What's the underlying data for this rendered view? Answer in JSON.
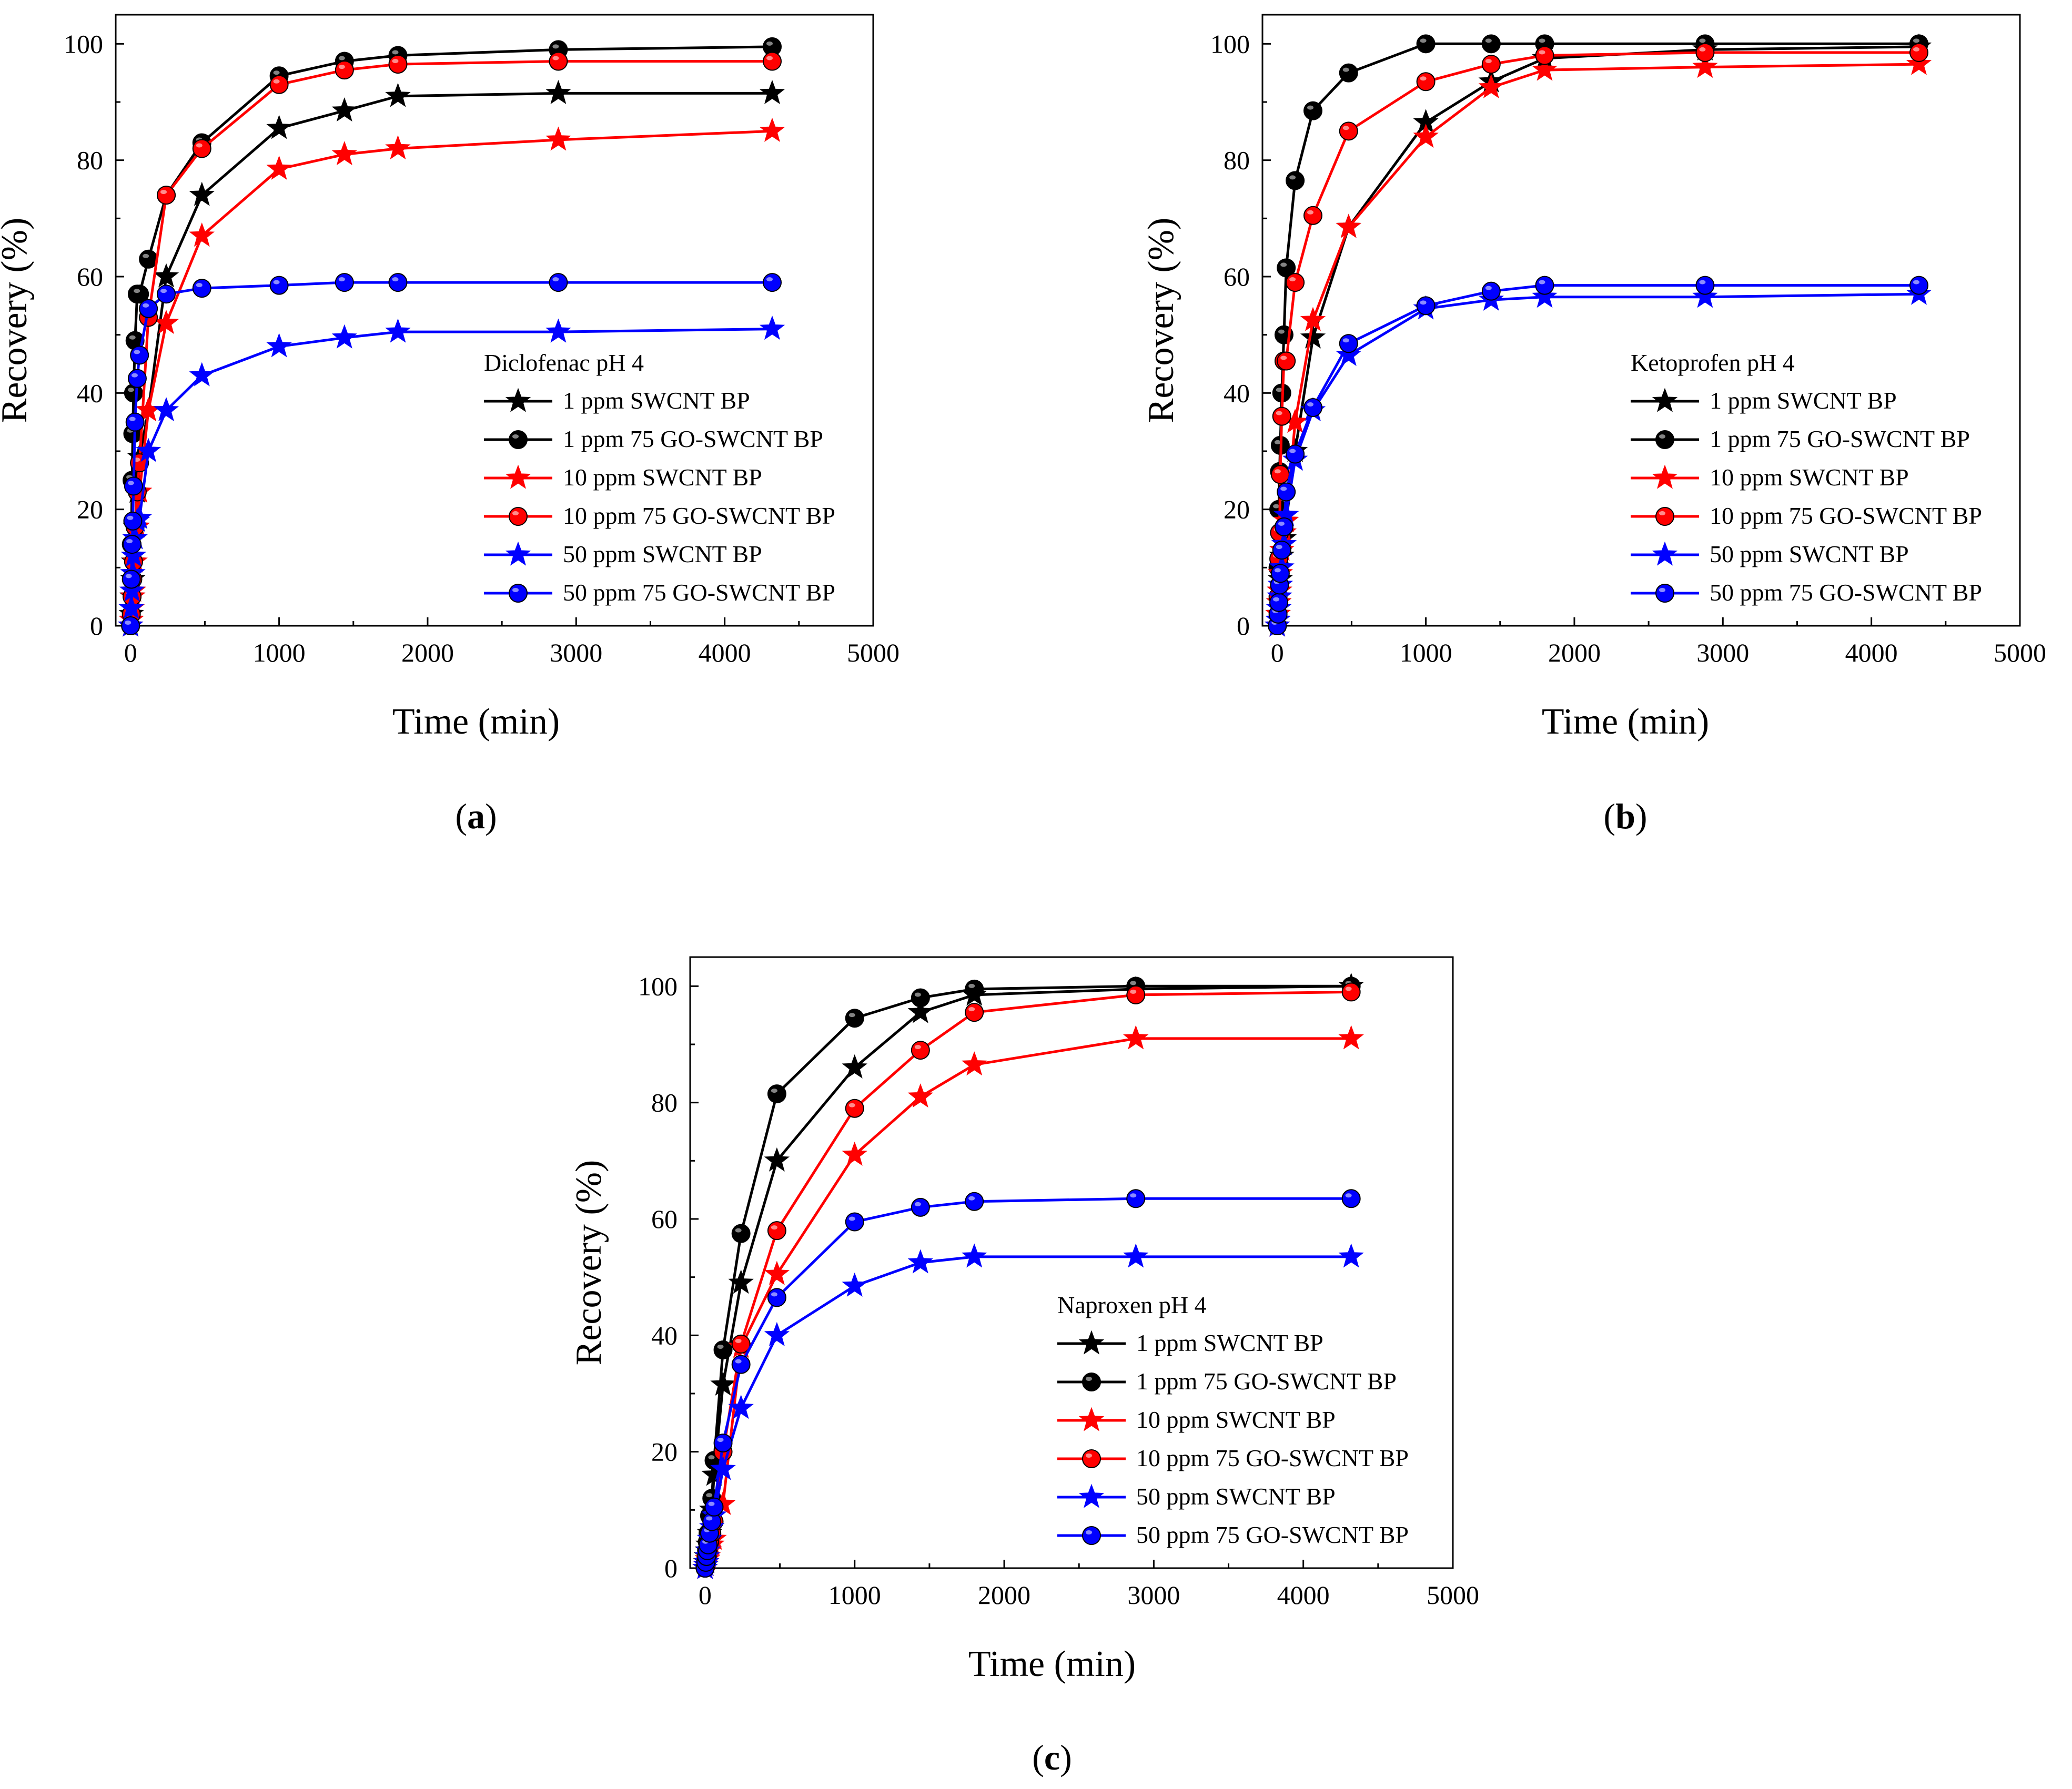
{
  "panel_labels": [
    "a",
    "b",
    "c"
  ],
  "legend_entries": [
    "1 ppm SWCNT BP",
    "1 ppm 75 GO-SWCNT BP",
    "10 ppm SWCNT BP",
    "10 ppm 75 GO-SWCNT BP",
    "50 ppm SWCNT BP",
    "50 ppm 75 GO-SWCNT BP"
  ],
  "colors": {
    "black": "#000000",
    "red": "#ff0000",
    "blue": "#0000ff"
  },
  "chart_data": [
    {
      "type": "line",
      "panel": "a",
      "title": "Diclofenac pH 4",
      "xlabel": "Time (min)",
      "ylabel": "Recovery (%)",
      "xlim": [
        -100,
        5000
      ],
      "ylim": [
        0,
        105
      ],
      "xticks": [
        0,
        1000,
        2000,
        3000,
        4000,
        5000
      ],
      "yticks": [
        0,
        20,
        40,
        60,
        80,
        100
      ],
      "legend_position": "center-right",
      "x": [
        0,
        5,
        10,
        15,
        20,
        30,
        45,
        60,
        120,
        240,
        480,
        1000,
        1440,
        1800,
        2880,
        4320
      ],
      "series": [
        {
          "name": "1 ppm SWCNT BP",
          "color": "#000000",
          "marker": "star",
          "values": [
            0,
            2,
            5,
            8,
            11,
            17,
            23,
            29,
            37,
            60,
            74,
            85.5,
            88.5,
            91,
            91.5,
            91.5
          ]
        },
        {
          "name": "1 ppm 75 GO-SWCNT BP",
          "color": "#000000",
          "marker": "circle",
          "values": [
            0,
            14,
            25,
            33,
            40,
            49,
            57,
            57,
            63,
            74,
            83,
            94.5,
            97,
            98,
            99,
            99.5
          ]
        },
        {
          "name": "10 ppm SWCNT BP",
          "color": "#ff0000",
          "marker": "star",
          "values": [
            0,
            1,
            3,
            5,
            6,
            11,
            17,
            23,
            37,
            52,
            67,
            78.5,
            81,
            82,
            83.5,
            85
          ]
        },
        {
          "name": "10 ppm 75 GO-SWCNT BP",
          "color": "#ff0000",
          "marker": "circle",
          "values": [
            0,
            2,
            5,
            8,
            11,
            17,
            23,
            28,
            53,
            74,
            82,
            93,
            95.5,
            96.5,
            97,
            97
          ]
        },
        {
          "name": "50 ppm SWCNT BP",
          "color": "#0000ff",
          "marker": "star",
          "values": [
            0,
            3,
            6,
            9,
            12,
            15,
            18,
            18.5,
            30,
            37,
            43,
            48,
            49.5,
            50.5,
            50.5,
            51
          ]
        },
        {
          "name": "50 ppm 75 GO-SWCNT BP",
          "color": "#0000ff",
          "marker": "circle",
          "values": [
            0,
            8,
            14,
            18,
            24,
            35,
            42.5,
            46.5,
            54.5,
            57,
            58,
            58.5,
            59,
            59,
            59,
            59
          ]
        }
      ]
    },
    {
      "type": "line",
      "panel": "b",
      "title": "Ketoprofen pH 4",
      "xlabel": "Time (min)",
      "ylabel": "Recovery (%)",
      "xlim": [
        -100,
        5000
      ],
      "ylim": [
        0,
        105
      ],
      "xticks": [
        0,
        1000,
        2000,
        3000,
        4000,
        5000
      ],
      "yticks": [
        0,
        20,
        40,
        60,
        80,
        100
      ],
      "legend_position": "center-right",
      "x": [
        0,
        5,
        10,
        15,
        20,
        30,
        45,
        60,
        120,
        240,
        480,
        1000,
        1440,
        1800,
        2880,
        4320
      ],
      "series": [
        {
          "name": "1 ppm SWCNT BP",
          "color": "#000000",
          "marker": "star",
          "values": [
            0,
            2,
            4,
            6,
            8,
            12,
            15,
            18,
            30,
            49.5,
            68.5,
            86.5,
            93.5,
            97.5,
            99,
            99.5
          ]
        },
        {
          "name": "1 ppm 75 GO-SWCNT BP",
          "color": "#000000",
          "marker": "circle",
          "values": [
            0,
            10,
            20,
            26.5,
            31,
            40,
            50,
            61.5,
            76.5,
            88.5,
            95,
            100,
            100,
            100,
            100,
            100
          ]
        },
        {
          "name": "10 ppm SWCNT BP",
          "color": "#ff0000",
          "marker": "star",
          "values": [
            0,
            2,
            4,
            6,
            9,
            13,
            16,
            18,
            35,
            52.5,
            68.5,
            84,
            92.5,
            95.5,
            96,
            96.5
          ]
        },
        {
          "name": "10 ppm 75 GO-SWCNT BP",
          "color": "#ff0000",
          "marker": "circle",
          "values": [
            0,
            5,
            11.5,
            16,
            26,
            36,
            45.5,
            45.5,
            59,
            70.5,
            85,
            93.5,
            96.5,
            98,
            98.5,
            98.5
          ]
        },
        {
          "name": "50 ppm SWCNT BP",
          "color": "#0000ff",
          "marker": "star",
          "values": [
            0,
            1,
            3,
            5,
            7,
            10,
            14,
            19,
            28.5,
            37,
            46.5,
            54.5,
            56,
            56.5,
            56.5,
            57
          ]
        },
        {
          "name": "50 ppm 75 GO-SWCNT BP",
          "color": "#0000ff",
          "marker": "circle",
          "values": [
            0,
            2,
            4,
            7,
            9,
            13,
            17,
            23,
            29.5,
            37.5,
            48.5,
            55,
            57.5,
            58.5,
            58.5,
            58.5
          ]
        }
      ]
    },
    {
      "type": "line",
      "panel": "c",
      "title": "Naproxen pH 4",
      "xlabel": "Time (min)",
      "ylabel": "Recovery (%)",
      "xlim": [
        -100,
        5000
      ],
      "ylim": [
        0,
        105
      ],
      "xticks": [
        0,
        1000,
        2000,
        3000,
        4000,
        5000
      ],
      "yticks": [
        0,
        20,
        40,
        60,
        80,
        100
      ],
      "legend_position": "center-right",
      "x": [
        0,
        5,
        10,
        15,
        20,
        30,
        45,
        60,
        120,
        240,
        480,
        1000,
        1440,
        1800,
        2880,
        4320
      ],
      "series": [
        {
          "name": "1 ppm SWCNT BP",
          "color": "#000000",
          "marker": "star",
          "values": [
            0,
            1,
            2,
            3,
            4,
            6,
            10,
            16,
            31.5,
            49,
            70,
            86,
            95.5,
            98.5,
            99.5,
            100
          ]
        },
        {
          "name": "1 ppm 75 GO-SWCNT BP",
          "color": "#000000",
          "marker": "circle",
          "values": [
            0,
            1.5,
            3,
            4.5,
            6,
            9,
            12,
            18.5,
            37.5,
            57.5,
            81.5,
            94.5,
            98,
            99.5,
            100,
            100
          ]
        },
        {
          "name": "10 ppm SWCNT BP",
          "color": "#ff0000",
          "marker": "star",
          "values": [
            0,
            0.5,
            1,
            1.5,
            2,
            3,
            4,
            5,
            11,
            38,
            50.5,
            71,
            81,
            86.5,
            91,
            91
          ]
        },
        {
          "name": "10 ppm 75 GO-SWCNT BP",
          "color": "#ff0000",
          "marker": "circle",
          "values": [
            0,
            0.5,
            1,
            2,
            3,
            4.5,
            6,
            8,
            20,
            38.5,
            58,
            79,
            89,
            95.5,
            98.5,
            99
          ]
        },
        {
          "name": "50 ppm SWCNT BP",
          "color": "#0000ff",
          "marker": "star",
          "values": [
            0,
            0.5,
            1,
            2,
            3,
            5,
            7,
            9,
            17,
            27.5,
            40,
            48.5,
            52.5,
            53.5,
            53.5,
            53.5
          ]
        },
        {
          "name": "50 ppm 75 GO-SWCNT BP",
          "color": "#0000ff",
          "marker": "circle",
          "values": [
            0,
            1,
            2,
            3,
            4,
            6,
            8,
            10.5,
            21.5,
            35,
            46.5,
            59.5,
            62,
            63,
            63.5,
            63.5
          ]
        }
      ]
    }
  ]
}
